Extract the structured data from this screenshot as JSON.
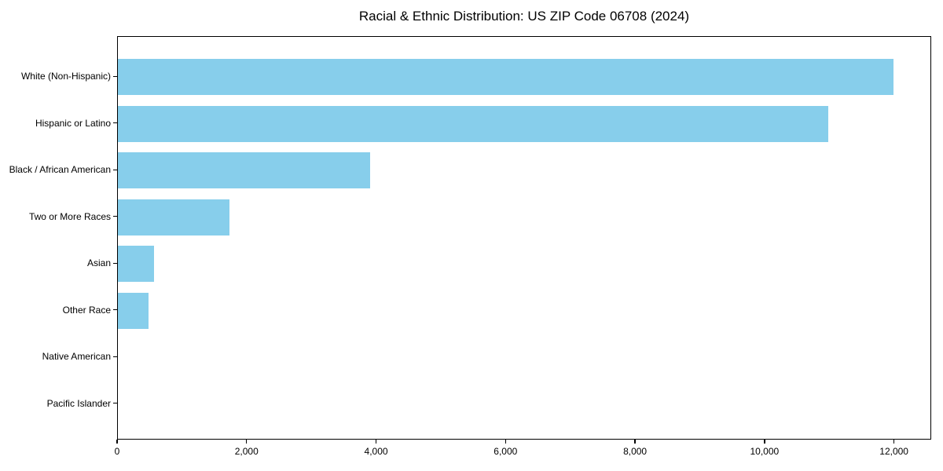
{
  "chart_data": {
    "type": "bar",
    "orientation": "horizontal",
    "title": "Racial & Ethnic Distribution: US ZIP Code 06708 (2024)",
    "categories": [
      "White (Non-Hispanic)",
      "Hispanic or Latino",
      "Black / African American",
      "Two or More Races",
      "Asian",
      "Other Race",
      "Native American",
      "Pacific Islander"
    ],
    "values": [
      11980,
      10970,
      3900,
      1720,
      560,
      470,
      0,
      0
    ],
    "xlabel": "",
    "ylabel": "",
    "xlim": [
      0,
      12575
    ],
    "xticks": [
      0,
      2000,
      4000,
      6000,
      8000,
      10000,
      12000
    ],
    "xtick_labels": [
      "0",
      "2,000",
      "4,000",
      "6,000",
      "8,000",
      "10,000",
      "12,000"
    ],
    "bar_color": "#87CEEB",
    "background_color": "#FFFFFF",
    "axis_color": "#000000",
    "grid": false,
    "legend_position": "none"
  }
}
